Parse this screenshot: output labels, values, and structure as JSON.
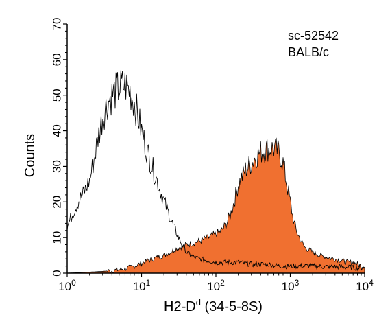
{
  "chart_data": {
    "type": "area",
    "annotations": [
      "sc-52542",
      "BALB/c"
    ],
    "xlabel": "H2-D",
    "xlabel_superscript": "d",
    "xlabel_suffix": " (34-5-8S)",
    "ylabel": "Counts",
    "x_scale": "log",
    "xlim": [
      1,
      10000
    ],
    "ylim": [
      0,
      70
    ],
    "x_ticks": [
      {
        "value": 1,
        "base": "10",
        "exp": "0"
      },
      {
        "value": 10,
        "base": "10",
        "exp": "1"
      },
      {
        "value": 100,
        "base": "10",
        "exp": "2"
      },
      {
        "value": 1000,
        "base": "10",
        "exp": "3"
      },
      {
        "value": 10000,
        "base": "10",
        "exp": "4"
      }
    ],
    "y_ticks": [
      0,
      10,
      20,
      30,
      40,
      50,
      60,
      70
    ],
    "grid": false,
    "series": [
      {
        "fill": "#f07030",
        "points": [
          [
            1,
            0
          ],
          [
            2,
            0.3
          ],
          [
            3,
            0.5
          ],
          [
            4,
            0.7
          ],
          [
            5,
            1
          ],
          [
            6,
            1.3
          ],
          [
            7,
            1.6
          ],
          [
            8,
            2
          ],
          [
            9,
            2.4
          ],
          [
            10,
            2.8
          ],
          [
            12,
            3.5
          ],
          [
            15,
            4.2
          ],
          [
            20,
            5
          ],
          [
            25,
            6
          ],
          [
            30,
            7
          ],
          [
            35,
            7.5
          ],
          [
            40,
            8
          ],
          [
            50,
            8.5
          ],
          [
            60,
            9
          ],
          [
            70,
            9.5
          ],
          [
            80,
            10
          ],
          [
            90,
            10.5
          ],
          [
            100,
            11
          ],
          [
            120,
            12
          ],
          [
            140,
            14
          ],
          [
            160,
            17
          ],
          [
            180,
            21
          ],
          [
            200,
            25
          ],
          [
            250,
            29
          ],
          [
            300,
            31
          ],
          [
            350,
            33
          ],
          [
            400,
            34
          ],
          [
            500,
            35
          ],
          [
            600,
            35
          ],
          [
            700,
            34
          ],
          [
            800,
            31
          ],
          [
            900,
            25
          ],
          [
            1000,
            20
          ],
          [
            1100,
            15
          ],
          [
            1200,
            12
          ],
          [
            1400,
            9
          ],
          [
            1600,
            7
          ],
          [
            2000,
            6
          ],
          [
            2500,
            5
          ],
          [
            3000,
            4.5
          ],
          [
            4000,
            4
          ],
          [
            5000,
            3.5
          ],
          [
            6000,
            3
          ],
          [
            7000,
            3
          ],
          [
            8000,
            2.5
          ],
          [
            9000,
            2
          ],
          [
            10000,
            2
          ]
        ]
      },
      {
        "stroke": "#000000",
        "points": [
          [
            1,
            13
          ],
          [
            1.2,
            17
          ],
          [
            1.4,
            20
          ],
          [
            1.6,
            22
          ],
          [
            1.8,
            24
          ],
          [
            2,
            26
          ],
          [
            2.3,
            32
          ],
          [
            2.6,
            38
          ],
          [
            3,
            44
          ],
          [
            3.5,
            48
          ],
          [
            4,
            50
          ],
          [
            5,
            52
          ],
          [
            6,
            53
          ],
          [
            7,
            51
          ],
          [
            8,
            48
          ],
          [
            9,
            44
          ],
          [
            10,
            40
          ],
          [
            12,
            34
          ],
          [
            15,
            28
          ],
          [
            18,
            23
          ],
          [
            22,
            18
          ],
          [
            26,
            14
          ],
          [
            30,
            11
          ],
          [
            35,
            8
          ],
          [
            40,
            6
          ],
          [
            50,
            4.5
          ],
          [
            60,
            4
          ],
          [
            80,
            3.5
          ],
          [
            100,
            3
          ],
          [
            150,
            3
          ],
          [
            200,
            3
          ],
          [
            300,
            2.5
          ],
          [
            500,
            2.5
          ],
          [
            700,
            2
          ],
          [
            1000,
            2
          ],
          [
            2000,
            2
          ],
          [
            3000,
            1.8
          ],
          [
            5000,
            1.8
          ],
          [
            7000,
            1.5
          ],
          [
            10000,
            1.5
          ]
        ]
      }
    ]
  }
}
